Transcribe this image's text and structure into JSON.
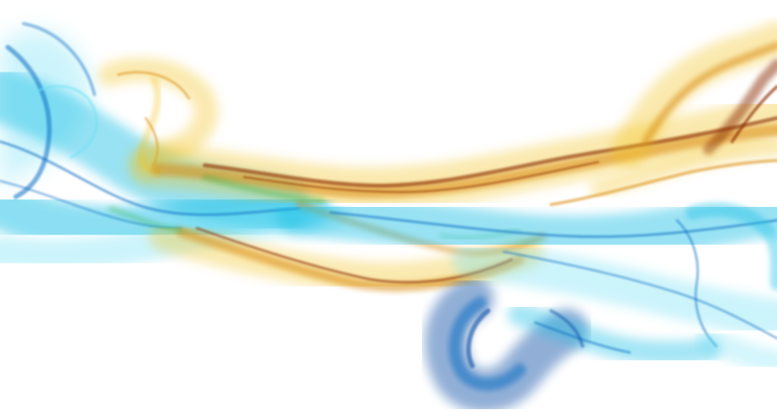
{
  "image": {
    "subject": "abstract-smoke-swirl",
    "background": "#ffffff",
    "palette": {
      "cyan": "#1cc0e6",
      "light_cyan": "#6fe0f5",
      "blue": "#0e6fc4",
      "deep_blue": "#0a4fa6",
      "yellow": "#f2c21a",
      "amber": "#d98a0b",
      "rust": "#8a2a05",
      "green": "#2fae3c"
    }
  }
}
